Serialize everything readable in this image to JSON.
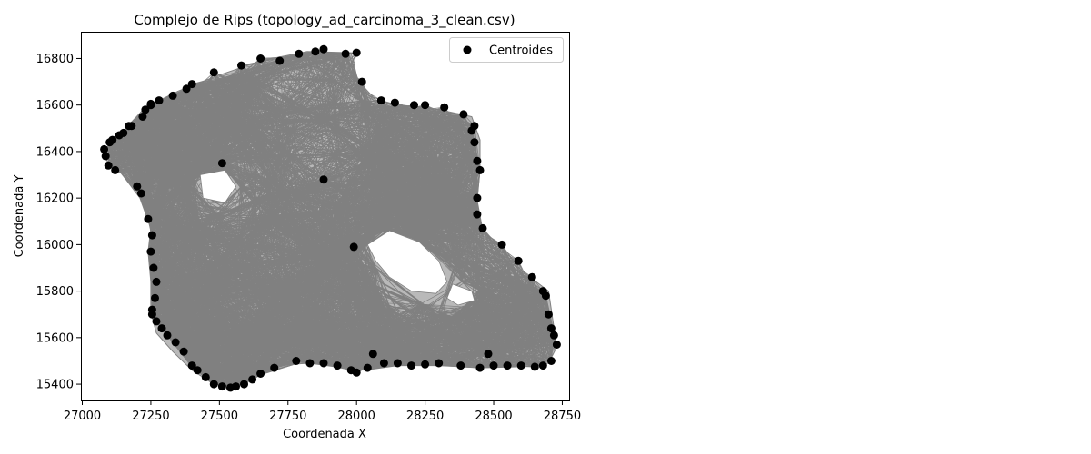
{
  "chart_data": {
    "type": "scatter",
    "title": "Complejo de Rips (topology_ad_carcinoma_3_clean.csv)",
    "xlabel": "Coordenada X",
    "ylabel": "Coordenada Y",
    "xlim": [
      26995,
      28775
    ],
    "ylim": [
      15330,
      16915
    ],
    "xticks": [
      27000,
      27250,
      27500,
      27750,
      28000,
      28250,
      28500,
      28750
    ],
    "yticks": [
      15400,
      15600,
      15800,
      16000,
      16200,
      16400,
      16600,
      16800
    ],
    "grid": false,
    "legend": {
      "position": "top-right",
      "entries": [
        "Centroides"
      ]
    },
    "colors": {
      "points": "#000000",
      "edges": "#808080"
    },
    "region_outline": [
      [
        27080,
        16400
      ],
      [
        27150,
        16490
      ],
      [
        27230,
        16590
      ],
      [
        27350,
        16660
      ],
      [
        27480,
        16720
      ],
      [
        27650,
        16790
      ],
      [
        27820,
        16830
      ],
      [
        27980,
        16825
      ],
      [
        28005,
        16705
      ],
      [
        28080,
        16610
      ],
      [
        28200,
        16595
      ],
      [
        28300,
        16580
      ],
      [
        28420,
        16550
      ],
      [
        28450,
        16450
      ],
      [
        28450,
        16320
      ],
      [
        28440,
        16190
      ],
      [
        28460,
        16060
      ],
      [
        28540,
        15980
      ],
      [
        28600,
        15890
      ],
      [
        28700,
        15800
      ],
      [
        28720,
        15640
      ],
      [
        28730,
        15560
      ],
      [
        28700,
        15490
      ],
      [
        28600,
        15475
      ],
      [
        28450,
        15470
      ],
      [
        28300,
        15480
      ],
      [
        28150,
        15480
      ],
      [
        28030,
        15460
      ],
      [
        27950,
        15470
      ],
      [
        27800,
        15495
      ],
      [
        27650,
        15440
      ],
      [
        27560,
        15390
      ],
      [
        27480,
        15400
      ],
      [
        27400,
        15460
      ],
      [
        27330,
        15540
      ],
      [
        27270,
        15620
      ],
      [
        27250,
        15710
      ],
      [
        27250,
        15840
      ],
      [
        27240,
        15970
      ],
      [
        27250,
        16070
      ],
      [
        27210,
        16200
      ],
      [
        27140,
        16310
      ],
      [
        27090,
        16360
      ]
    ],
    "holes": [
      [
        [
          28040,
          16000
        ],
        [
          28120,
          16060
        ],
        [
          28230,
          16010
        ],
        [
          28300,
          15930
        ],
        [
          28330,
          15840
        ],
        [
          28290,
          15790
        ],
        [
          28200,
          15800
        ],
        [
          28120,
          15860
        ],
        [
          28070,
          15930
        ]
      ],
      [
        [
          28350,
          15830
        ],
        [
          28420,
          15800
        ],
        [
          28430,
          15760
        ],
        [
          28370,
          15740
        ],
        [
          28330,
          15770
        ]
      ],
      [
        [
          27430,
          16300
        ],
        [
          27520,
          16320
        ],
        [
          27560,
          16250
        ],
        [
          27520,
          16180
        ],
        [
          27440,
          16200
        ]
      ]
    ],
    "centroides": [
      [
        27080,
        16410
      ],
      [
        27085,
        16380
      ],
      [
        27095,
        16340
      ],
      [
        27110,
        16450
      ],
      [
        27120,
        16320
      ],
      [
        27150,
        16480
      ],
      [
        27180,
        16510
      ],
      [
        27200,
        16250
      ],
      [
        27215,
        16220
      ],
      [
        27220,
        16550
      ],
      [
        27230,
        16580
      ],
      [
        27240,
        16110
      ],
      [
        27250,
        16600
      ],
      [
        27255,
        16040
      ],
      [
        27250,
        15970
      ],
      [
        27260,
        15900
      ],
      [
        27270,
        15840
      ],
      [
        27265,
        15770
      ],
      [
        27255,
        15720
      ],
      [
        27255,
        15700
      ],
      [
        27270,
        15670
      ],
      [
        27290,
        15640
      ],
      [
        27310,
        15610
      ],
      [
        27340,
        15580
      ],
      [
        27370,
        15540
      ],
      [
        27400,
        15480
      ],
      [
        27420,
        15460
      ],
      [
        27450,
        15430
      ],
      [
        27480,
        15400
      ],
      [
        27510,
        15390
      ],
      [
        27540,
        15385
      ],
      [
        27560,
        15390
      ],
      [
        27590,
        15400
      ],
      [
        27620,
        15420
      ],
      [
        27650,
        15445
      ],
      [
        27700,
        15470
      ],
      [
        27780,
        15500
      ],
      [
        27830,
        15490
      ],
      [
        27880,
        15490
      ],
      [
        27930,
        15480
      ],
      [
        27980,
        15460
      ],
      [
        28000,
        15450
      ],
      [
        28040,
        15470
      ],
      [
        28100,
        15490
      ],
      [
        28150,
        15490
      ],
      [
        28200,
        15480
      ],
      [
        28250,
        15485
      ],
      [
        28300,
        15490
      ],
      [
        28380,
        15480
      ],
      [
        28450,
        15470
      ],
      [
        28500,
        15480
      ],
      [
        28550,
        15480
      ],
      [
        28600,
        15480
      ],
      [
        28650,
        15475
      ],
      [
        28680,
        15480
      ],
      [
        28710,
        15500
      ],
      [
        28730,
        15570
      ],
      [
        28720,
        15610
      ],
      [
        28710,
        15640
      ],
      [
        28700,
        15700
      ],
      [
        28690,
        15780
      ],
      [
        28680,
        15800
      ],
      [
        28640,
        15860
      ],
      [
        28590,
        15930
      ],
      [
        28530,
        16000
      ],
      [
        28460,
        16070
      ],
      [
        28440,
        16130
      ],
      [
        28440,
        16200
      ],
      [
        28450,
        16320
      ],
      [
        28440,
        16360
      ],
      [
        28430,
        16440
      ],
      [
        28420,
        16490
      ],
      [
        28430,
        16510
      ],
      [
        28390,
        16560
      ],
      [
        28320,
        16590
      ],
      [
        28250,
        16600
      ],
      [
        28210,
        16600
      ],
      [
        28140,
        16610
      ],
      [
        28090,
        16620
      ],
      [
        28020,
        16700
      ],
      [
        28000,
        16825
      ],
      [
        27960,
        16820
      ],
      [
        27880,
        16840
      ],
      [
        27850,
        16830
      ],
      [
        27790,
        16820
      ],
      [
        27720,
        16790
      ],
      [
        27650,
        16800
      ],
      [
        27580,
        16770
      ],
      [
        27480,
        16740
      ],
      [
        27400,
        16690
      ],
      [
        27380,
        16670
      ],
      [
        27330,
        16640
      ],
      [
        27280,
        16620
      ],
      [
        27250,
        16605
      ],
      [
        27170,
        16510
      ],
      [
        27135,
        16470
      ],
      [
        27100,
        16440
      ],
      [
        27510,
        16350
      ],
      [
        27880,
        16280
      ],
      [
        27990,
        15990
      ],
      [
        28480,
        15530
      ],
      [
        28060,
        15530
      ]
    ]
  }
}
